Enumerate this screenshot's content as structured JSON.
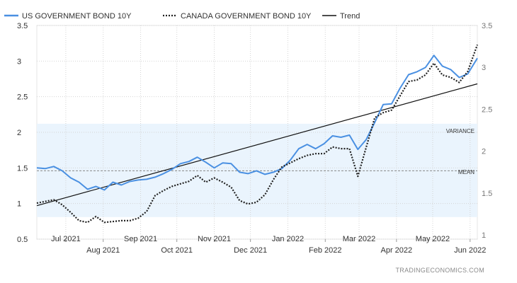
{
  "chart_data": {
    "type": "line",
    "title": "",
    "legend": {
      "placement": "top-left",
      "items": [
        {
          "label": "US GOVERNMENT BOND 10Y",
          "color": "#4a90e2",
          "style": "solid"
        },
        {
          "label": "CANADA GOVERNMENT BOND 10Y",
          "color": "#222222",
          "style": "dotted"
        },
        {
          "label": "Trend",
          "color": "#111111",
          "style": "solid"
        }
      ]
    },
    "x_ticks": [
      "Jul 2021",
      "Aug 2021",
      "Sep 2021",
      "Oct 2021",
      "Nov 2021",
      "Dec 2021",
      "Jan 2022",
      "Feb 2022",
      "Mar 2022",
      "Apr 2022",
      "May 2022",
      "Jun 2022"
    ],
    "x_range": [
      "2021-06-07",
      "2022-06-07"
    ],
    "y_left": {
      "ticks": [
        "0.5",
        "1",
        "1.5",
        "2",
        "2.5",
        "3",
        "3.5"
      ],
      "ylim": [
        0.5,
        3.5
      ]
    },
    "y_right": {
      "ticks": [
        "1",
        "1.5",
        "2",
        "2.5",
        "3",
        "3.5"
      ],
      "ylim": [
        0.95,
        3.5
      ]
    },
    "grid": true,
    "series": [
      {
        "name": "US GOVERNMENT BOND 10Y",
        "axis": "left",
        "x": [
          "2021-06-07",
          "2021-06-14",
          "2021-06-21",
          "2021-06-28",
          "2021-07-05",
          "2021-07-12",
          "2021-07-19",
          "2021-07-26",
          "2021-08-02",
          "2021-08-09",
          "2021-08-16",
          "2021-08-23",
          "2021-08-30",
          "2021-09-06",
          "2021-09-13",
          "2021-09-20",
          "2021-09-27",
          "2021-10-04",
          "2021-10-11",
          "2021-10-18",
          "2021-10-25",
          "2021-11-01",
          "2021-11-08",
          "2021-11-15",
          "2021-11-22",
          "2021-11-29",
          "2021-12-06",
          "2021-12-13",
          "2021-12-20",
          "2021-12-27",
          "2022-01-03",
          "2022-01-10",
          "2022-01-17",
          "2022-01-24",
          "2022-01-31",
          "2022-02-07",
          "2022-02-14",
          "2022-02-21",
          "2022-02-28",
          "2022-03-07",
          "2022-03-14",
          "2022-03-21",
          "2022-03-28",
          "2022-04-04",
          "2022-04-11",
          "2022-04-18",
          "2022-04-25",
          "2022-05-02",
          "2022-05-09",
          "2022-05-16",
          "2022-05-23",
          "2022-05-30",
          "2022-06-07"
        ],
        "values": [
          1.5,
          1.49,
          1.52,
          1.46,
          1.36,
          1.3,
          1.2,
          1.24,
          1.19,
          1.3,
          1.26,
          1.31,
          1.33,
          1.34,
          1.37,
          1.42,
          1.48,
          1.56,
          1.59,
          1.65,
          1.58,
          1.5,
          1.57,
          1.56,
          1.44,
          1.42,
          1.46,
          1.41,
          1.44,
          1.49,
          1.61,
          1.77,
          1.83,
          1.77,
          1.84,
          1.95,
          1.93,
          1.96,
          1.76,
          1.9,
          2.14,
          2.39,
          2.4,
          2.62,
          2.81,
          2.85,
          2.91,
          3.08,
          2.93,
          2.88,
          2.77,
          2.82,
          3.04
        ]
      },
      {
        "name": "CANADA GOVERNMENT BOND 10Y",
        "axis": "right",
        "x": [
          "2021-06-07",
          "2021-06-14",
          "2021-06-21",
          "2021-06-28",
          "2021-07-05",
          "2021-07-12",
          "2021-07-19",
          "2021-07-26",
          "2021-08-02",
          "2021-08-09",
          "2021-08-16",
          "2021-08-23",
          "2021-08-30",
          "2021-09-06",
          "2021-09-13",
          "2021-09-20",
          "2021-09-27",
          "2021-10-04",
          "2021-10-11",
          "2021-10-18",
          "2021-10-25",
          "2021-11-01",
          "2021-11-08",
          "2021-11-15",
          "2021-11-22",
          "2021-11-29",
          "2021-12-06",
          "2021-12-13",
          "2021-12-20",
          "2021-12-27",
          "2022-01-03",
          "2022-01-10",
          "2022-01-17",
          "2022-01-24",
          "2022-01-31",
          "2022-02-07",
          "2022-02-14",
          "2022-02-21",
          "2022-02-28",
          "2022-03-07",
          "2022-03-14",
          "2022-03-21",
          "2022-03-28",
          "2022-04-04",
          "2022-04-11",
          "2022-04-18",
          "2022-04-25",
          "2022-05-02",
          "2022-05-09",
          "2022-05-16",
          "2022-05-23",
          "2022-05-30",
          "2022-06-07"
        ],
        "values": [
          1.38,
          1.4,
          1.42,
          1.36,
          1.27,
          1.17,
          1.15,
          1.22,
          1.15,
          1.16,
          1.17,
          1.17,
          1.2,
          1.28,
          1.47,
          1.53,
          1.58,
          1.61,
          1.64,
          1.71,
          1.63,
          1.68,
          1.63,
          1.57,
          1.41,
          1.37,
          1.39,
          1.48,
          1.66,
          1.81,
          1.86,
          1.91,
          1.95,
          1.97,
          1.97,
          2.05,
          2.03,
          2.03,
          1.7,
          2.05,
          2.4,
          2.46,
          2.49,
          2.66,
          2.83,
          2.85,
          2.91,
          3.05,
          2.91,
          2.88,
          2.82,
          2.95,
          3.27
        ]
      },
      {
        "name": "Trend",
        "axis": "left",
        "x": [
          "2021-06-07",
          "2022-06-07"
        ],
        "values": [
          0.97,
          2.68
        ]
      }
    ],
    "bands": [
      {
        "label": "VARIANCE",
        "from": 0.81,
        "to": 2.12,
        "color": "#eaf4fd"
      }
    ],
    "reference_lines": [
      {
        "label": "MEAN",
        "value": 1.46,
        "color": "#888888",
        "style": "dashed"
      }
    ],
    "source": "TRADINGECONOMICS.COM"
  }
}
